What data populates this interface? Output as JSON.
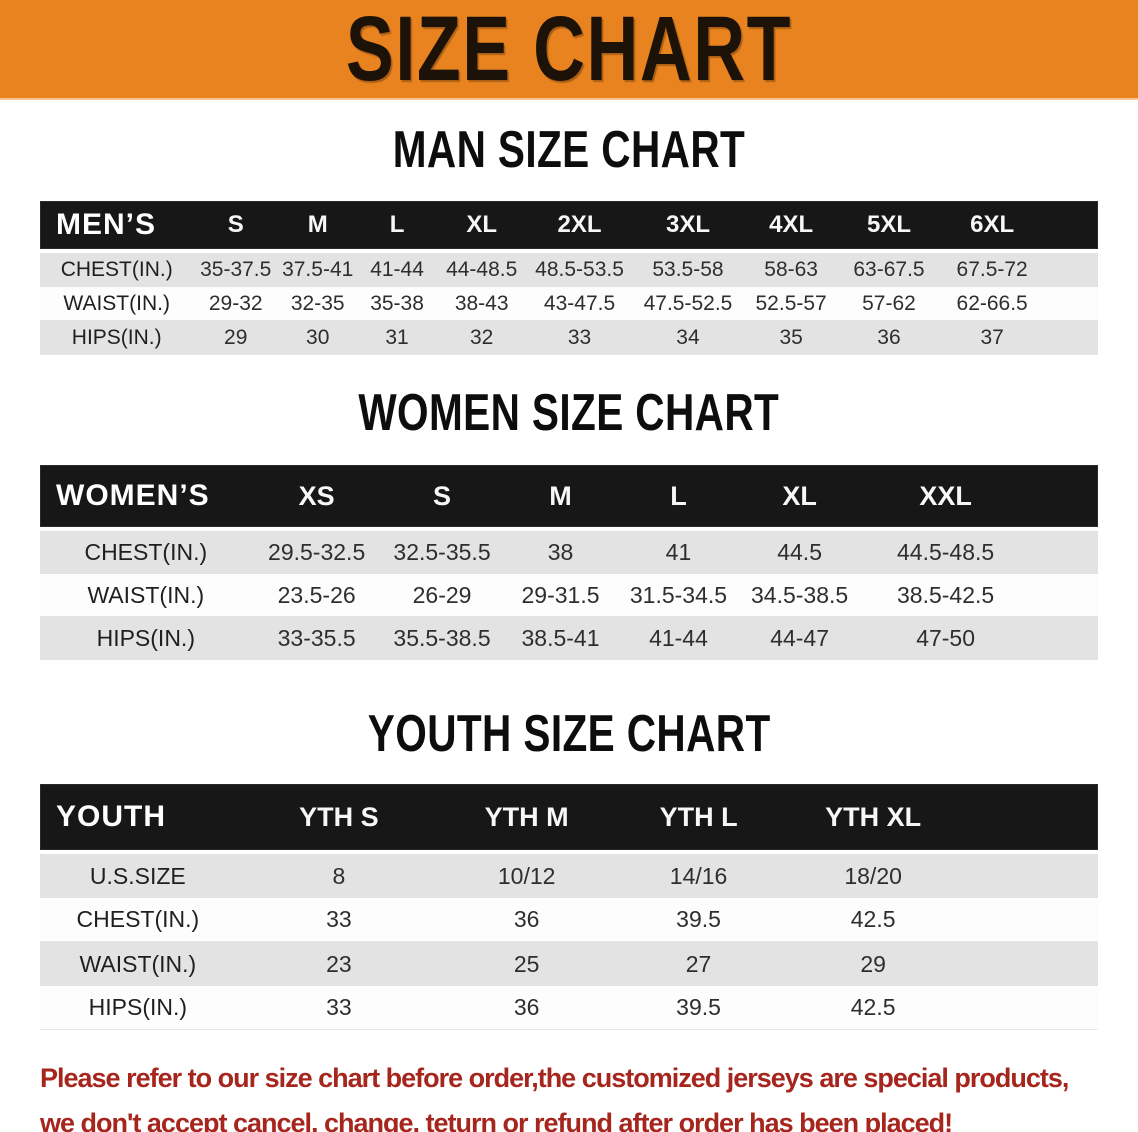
{
  "banner": {
    "title": "SIZE CHART",
    "bg_color": "#E8831F"
  },
  "sections": [
    {
      "heading": "MAN SIZE CHART",
      "table": {
        "label": "MEN’S",
        "columns": [
          "S",
          "M",
          "L",
          "XL",
          "2XL",
          "3XL",
          "4XL",
          "5XL",
          "6XL"
        ],
        "rows": [
          {
            "label": "CHEST(IN.)",
            "values": [
              "35-37.5",
              "37.5-41",
              "41-44",
              "44-48.5",
              "48.5-53.5",
              "53.5-58",
              "58-63",
              "63-67.5",
              "67.5-72"
            ]
          },
          {
            "label": "WAIST(IN.)",
            "values": [
              "29-32",
              "32-35",
              "35-38",
              "38-43",
              "43-47.5",
              "47.5-52.5",
              "52.5-57",
              "57-62",
              "62-66.5"
            ]
          },
          {
            "label": "HIPS(IN.)",
            "values": [
              "29",
              "30",
              "31",
              "32",
              "33",
              "34",
              "35",
              "36",
              "37"
            ]
          }
        ]
      }
    },
    {
      "heading": "WOMEN SIZE CHART",
      "table": {
        "label": "WOMEN’S",
        "columns": [
          "XS",
          "S",
          "M",
          "L",
          "XL",
          "XXL"
        ],
        "rows": [
          {
            "label": "CHEST(IN.)",
            "values": [
              "29.5-32.5",
              "32.5-35.5",
              "38",
              "41",
              "44.5",
              "44.5-48.5"
            ]
          },
          {
            "label": "WAIST(IN.)",
            "values": [
              "23.5-26",
              "26-29",
              "29-31.5",
              "31.5-34.5",
              "34.5-38.5",
              "38.5-42.5"
            ]
          },
          {
            "label": "HIPS(IN.)",
            "values": [
              "33-35.5",
              "35.5-38.5",
              "38.5-41",
              "41-44",
              "44-47",
              "47-50"
            ]
          }
        ]
      }
    },
    {
      "heading": "YOUTH SIZE CHART",
      "table": {
        "label": "YOUTH",
        "columns": [
          "YTH S",
          "YTH M",
          "YTH L",
          "YTH XL"
        ],
        "rows": [
          {
            "label": "U.S.SIZE",
            "values": [
              "8",
              "10/12",
              "14/16",
              "18/20"
            ]
          },
          {
            "label": "CHEST(IN.)",
            "values": [
              "33",
              "36",
              "39.5",
              "42.5"
            ]
          },
          {
            "label": "WAIST(IN.)",
            "values": [
              "23",
              "25",
              "27",
              "29"
            ]
          },
          {
            "label": "HIPS(IN.)",
            "values": [
              "33",
              "36",
              "39.5",
              "42.5"
            ]
          }
        ]
      }
    }
  ],
  "footer": {
    "line1": "Please refer to our size chart before order,the customized jerseys are special products,",
    "line2": "we don't accept cancel, change, teturn or refund after order has been placed!",
    "text_color": "#A6261E"
  }
}
